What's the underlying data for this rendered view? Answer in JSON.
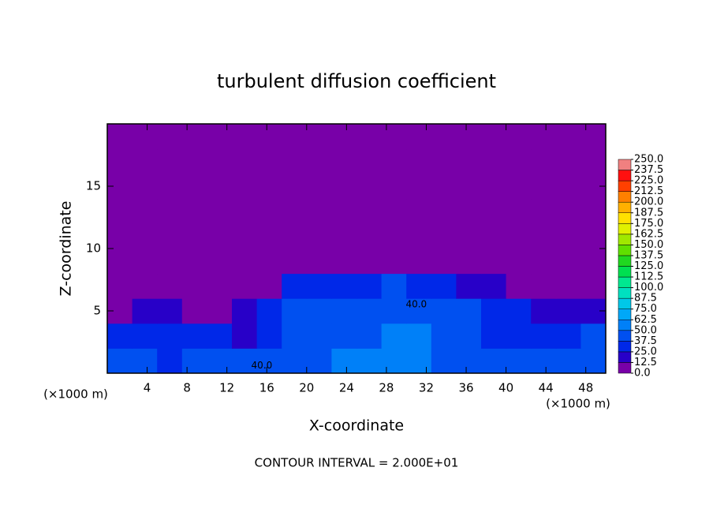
{
  "chart_data": {
    "type": "contour",
    "title": "turbulent diffusion coefficient",
    "xlabel": "X-coordinate",
    "ylabel": "Z-coordinate",
    "x_unit_left": "(×1000 m)",
    "x_unit_right": "(×1000 m)",
    "note": "CONTOUR INTERVAL = 2.000E+01",
    "xlim": [
      0,
      50
    ],
    "ylim": [
      0,
      20
    ],
    "xticks": [
      4,
      8,
      12,
      16,
      20,
      24,
      28,
      32,
      36,
      40,
      44,
      48
    ],
    "yticks": [
      5,
      10,
      15
    ],
    "x": [
      1.25,
      3.75,
      6.25,
      8.75,
      11.25,
      13.75,
      16.25,
      18.75,
      21.25,
      23.75,
      26.25,
      28.75,
      31.25,
      33.75,
      36.25,
      38.75,
      41.25,
      43.75,
      46.25,
      48.75
    ],
    "y": [
      1,
      3,
      5,
      7,
      9,
      11,
      13,
      15,
      17,
      19
    ],
    "z": [
      [
        40,
        45,
        35,
        40,
        38,
        42,
        40,
        45,
        48,
        50,
        55,
        60,
        58,
        45,
        40,
        42,
        38,
        45,
        48,
        42
      ],
      [
        35,
        30,
        25,
        28,
        30,
        22,
        30,
        38,
        40,
        42,
        45,
        55,
        50,
        40,
        38,
        35,
        30,
        25,
        32,
        40
      ],
      [
        12,
        15,
        18,
        10,
        8,
        20,
        35,
        38,
        40,
        42,
        45,
        48,
        45,
        40,
        38,
        35,
        30,
        22,
        18,
        15
      ],
      [
        2,
        3,
        2,
        1,
        1,
        2,
        8,
        25,
        30,
        32,
        35,
        38,
        30,
        25,
        22,
        18,
        8,
        3,
        2,
        2
      ],
      [
        0,
        0,
        0,
        0,
        0,
        0,
        0,
        0,
        0,
        0,
        0,
        0,
        0,
        0,
        0,
        0,
        0,
        0,
        0,
        0
      ],
      [
        0,
        0,
        0,
        0,
        0,
        0,
        0,
        0,
        0,
        0,
        0,
        0,
        0,
        0,
        0,
        0,
        0,
        0,
        0,
        0
      ],
      [
        0,
        0,
        0,
        0,
        0,
        0,
        0,
        0,
        0,
        0,
        0,
        0,
        0,
        0,
        0,
        0,
        0,
        0,
        0,
        0
      ],
      [
        0,
        0,
        0,
        0,
        0,
        0,
        0,
        0,
        0,
        0,
        0,
        0,
        0,
        0,
        0,
        0,
        0,
        0,
        0,
        0
      ],
      [
        0,
        0,
        0,
        0,
        0,
        0,
        0,
        0,
        0,
        0,
        0,
        0,
        0,
        0,
        0,
        0,
        0,
        0,
        0,
        0
      ],
      [
        0,
        0,
        0,
        0,
        0,
        0,
        0,
        0,
        0,
        0,
        0,
        0,
        0,
        0,
        0,
        0,
        0,
        0,
        0,
        0
      ]
    ],
    "contour_labels": [
      {
        "text": "40.0",
        "x": 15.5,
        "y": 0.6
      },
      {
        "text": "40.0",
        "x": 31,
        "y": 5.5
      }
    ],
    "colorbar": {
      "levels": [
        {
          "value": 0,
          "label": "0.0"
        },
        12.5,
        {
          "value": 25,
          "label": "25.0"
        },
        37.5,
        {
          "value": 50,
          "label": "50.0"
        },
        62.5,
        {
          "value": 75,
          "label": "75.0"
        },
        87.5,
        {
          "value": 100,
          "label": "100.0"
        },
        112.5,
        {
          "value": 125,
          "label": "125.0"
        },
        137.5,
        {
          "value": 150,
          "label": "150.0"
        },
        162.5,
        {
          "value": 175,
          "label": "175.0"
        },
        187.5,
        {
          "value": 200,
          "label": "200.0"
        },
        212.5,
        {
          "value": 225,
          "label": "225.0"
        },
        237.5,
        {
          "value": 250,
          "label": "250.0"
        }
      ],
      "colors": [
        "#7800a8",
        "#2800c8",
        "#0028e8",
        "#0050f0",
        "#0080f8",
        "#00a8f8",
        "#00c8e8",
        "#00e0c0",
        "#00e890",
        "#00e050",
        "#20d820",
        "#60e000",
        "#a0e800",
        "#e0f000",
        "#ffe000",
        "#ffb000",
        "#ff8000",
        "#ff4000",
        "#ff1010",
        "#f08080"
      ]
    }
  }
}
